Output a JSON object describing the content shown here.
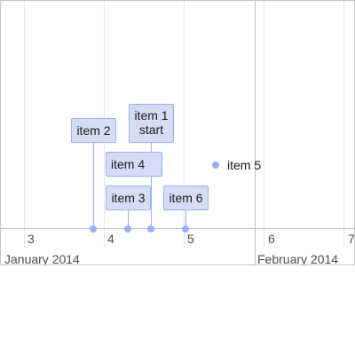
{
  "timeline": {
    "minor_labels": [
      "3",
      "4",
      "5",
      "6",
      "7"
    ],
    "major_labels": [
      "January 2014",
      "February 2014"
    ],
    "items": [
      {
        "line1": "item 1",
        "line2": "start"
      },
      {
        "line1": "item 2"
      },
      {
        "line1": "item 3"
      },
      {
        "line1": "item 4"
      },
      {
        "line1": "item 5"
      },
      {
        "line1": "item 6"
      }
    ],
    "colors": {
      "item_fill": "#d5ddf6",
      "item_border": "#97b0f8",
      "grid": "#e6e6e6",
      "axis": "#bfbfbf"
    }
  }
}
